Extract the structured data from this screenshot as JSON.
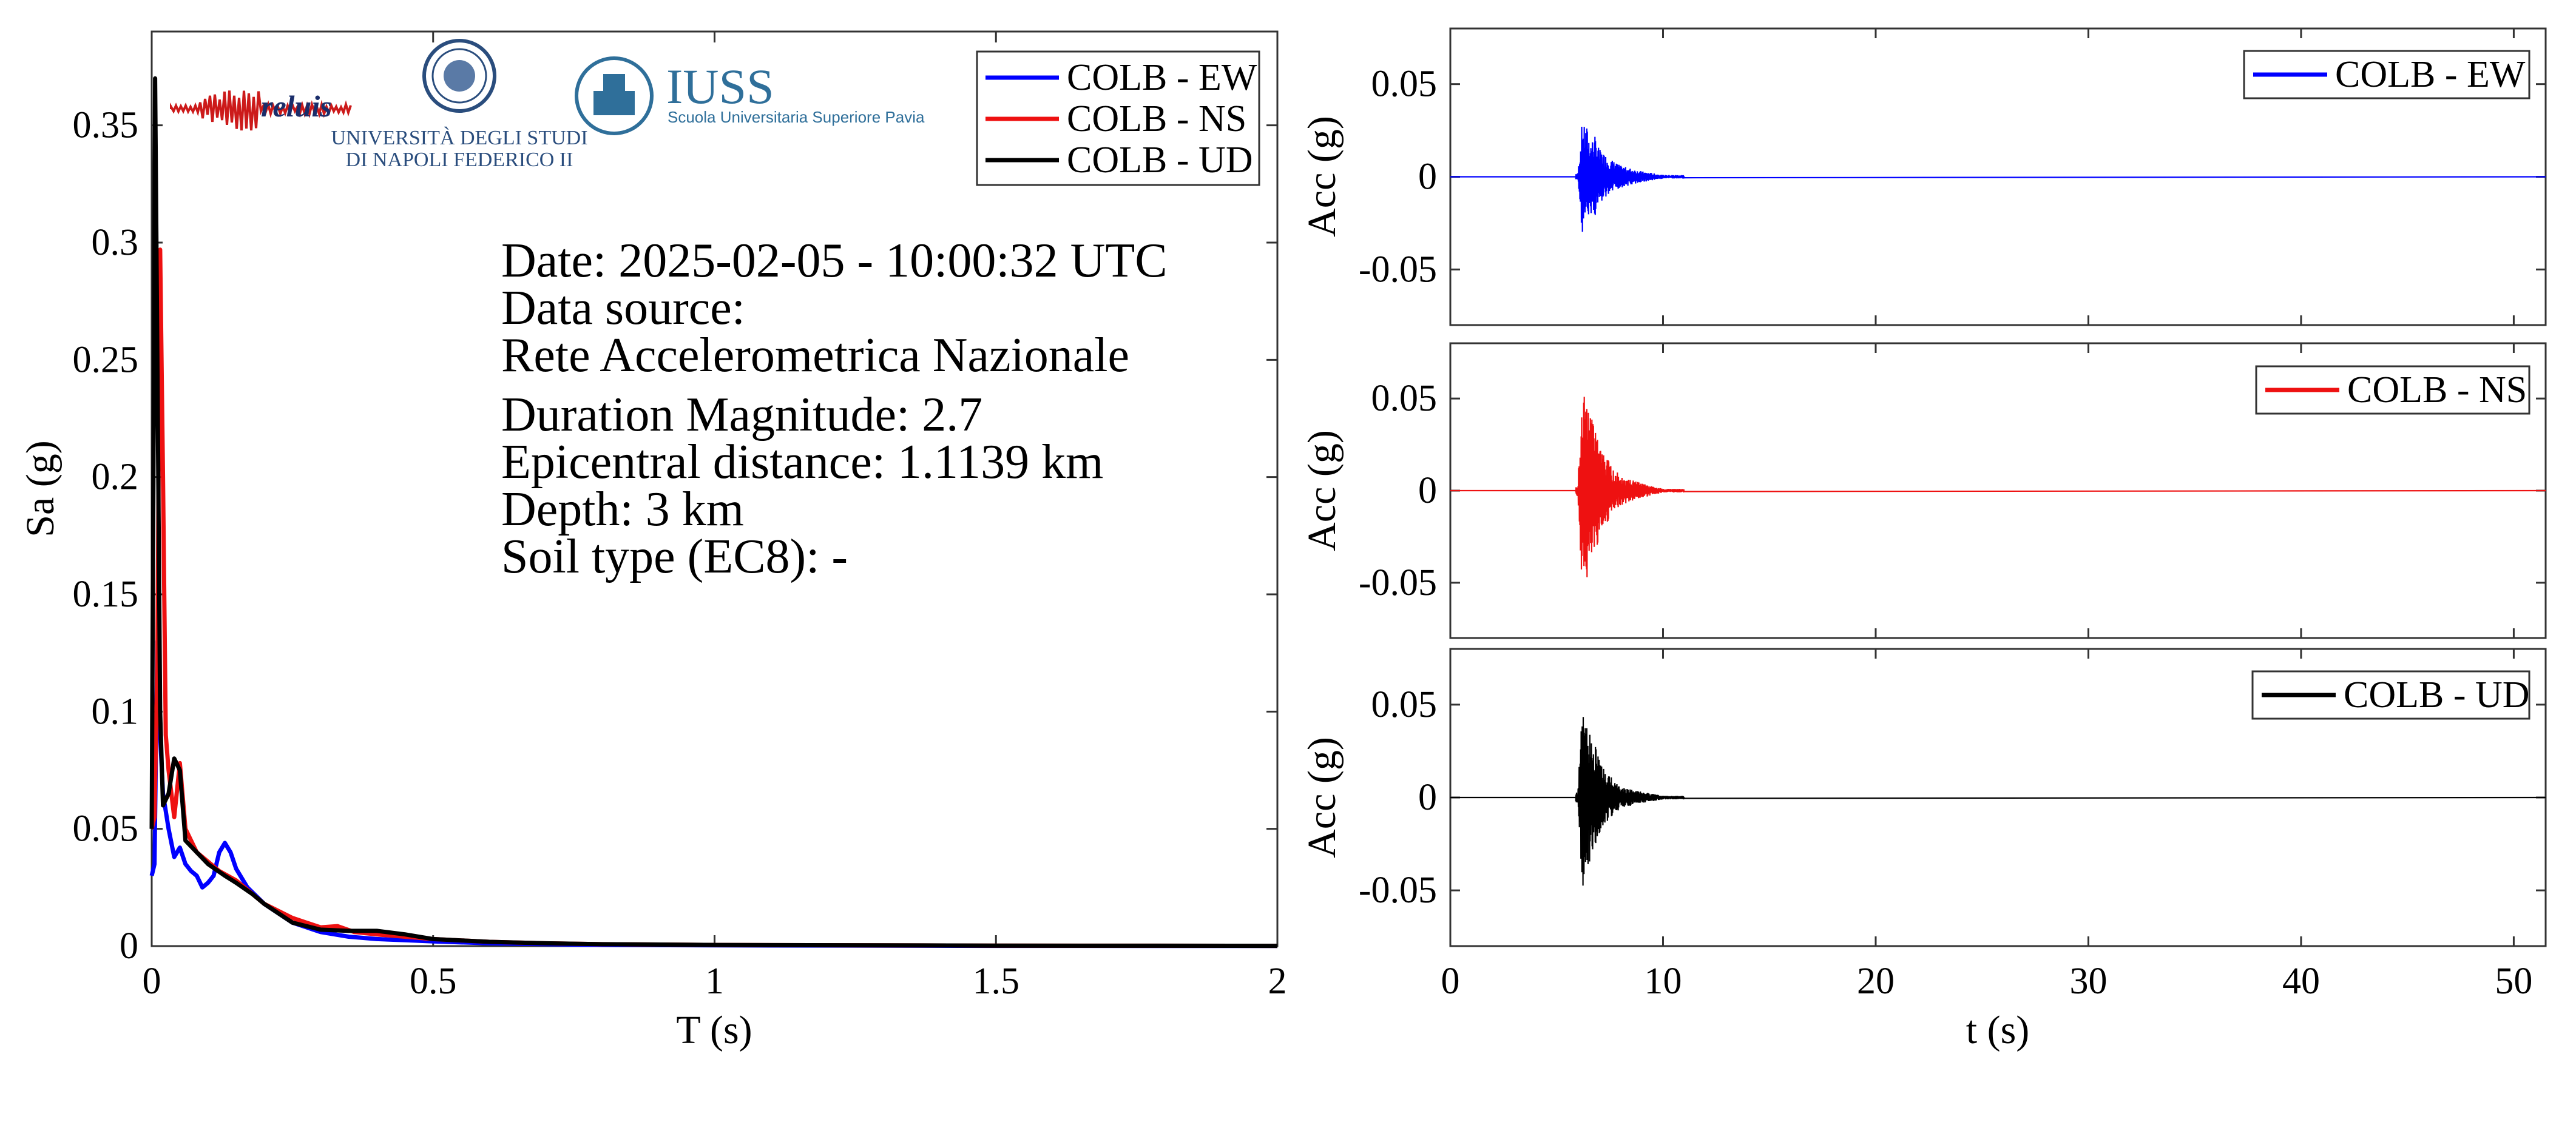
{
  "spectrum": {
    "ylabel": "Sa (g)",
    "xlabel": "T (s)",
    "legend": [
      "COLB - EW",
      "COLB - NS",
      "COLB - UD"
    ],
    "info_lines": [
      "Date: 2025-02-05 - 10:00:32 UTC",
      "Data source:",
      "Rete Accelerometrica Nazionale",
      "Duration Magnitude: 2.7",
      "Epicentral distance: 1.1139 km",
      "Depth: 3 km",
      "Soil type (EC8): -"
    ]
  },
  "logos": {
    "reluis_text": "reluis",
    "unina_line1": "UNIVERSITÀ DEGLI STUDI",
    "unina_line2": "DI NAPOLI FEDERICO II",
    "iuss_title": "IUSS",
    "iuss_sub": "Scuola Universitaria Superiore Pavia"
  },
  "acc": {
    "ylabel": "Acc (g)",
    "xlabel": "t (s)",
    "legend": [
      "COLB - EW",
      "COLB - NS",
      "COLB - UD"
    ]
  },
  "colors": {
    "EW": "#0000ff",
    "NS": "#ee1111",
    "UD": "#000000"
  },
  "chart_data": [
    {
      "type": "line",
      "title": "",
      "xlabel": "T (s)",
      "ylabel": "Sa (g)",
      "xlim": [
        0,
        2
      ],
      "ylim": [
        0,
        0.39
      ],
      "xticks": [
        "0",
        "0.5",
        "1",
        "1.5",
        "2"
      ],
      "yticks": [
        "0",
        "0.05",
        "0.1",
        "0.15",
        "0.2",
        "0.25",
        "0.3",
        "0.35"
      ],
      "legend_position": "top-right",
      "series": [
        {
          "name": "COLB - EW",
          "x": [
            0,
            0.005,
            0.01,
            0.015,
            0.02,
            0.03,
            0.04,
            0.05,
            0.06,
            0.07,
            0.08,
            0.09,
            0.1,
            0.11,
            0.12,
            0.13,
            0.14,
            0.15,
            0.17,
            0.2,
            0.25,
            0.3,
            0.35,
            0.4,
            0.45,
            0.5,
            0.6,
            0.7,
            0.8,
            1.0,
            1.5,
            2.0
          ],
          "y": [
            0.03,
            0.035,
            0.13,
            0.09,
            0.065,
            0.05,
            0.038,
            0.042,
            0.035,
            0.032,
            0.03,
            0.025,
            0.027,
            0.03,
            0.04,
            0.044,
            0.04,
            0.033,
            0.025,
            0.018,
            0.01,
            0.006,
            0.004,
            0.003,
            0.0025,
            0.002,
            0.0012,
            0.0008,
            0.0005,
            0.0003,
            0.0001,
            5e-05
          ]
        },
        {
          "name": "COLB - NS",
          "x": [
            0,
            0.005,
            0.01,
            0.015,
            0.02,
            0.025,
            0.03,
            0.04,
            0.05,
            0.06,
            0.07,
            0.08,
            0.1,
            0.12,
            0.15,
            0.17,
            0.2,
            0.25,
            0.3,
            0.33,
            0.36,
            0.4,
            0.45,
            0.5,
            0.6,
            0.7,
            0.8,
            1.0,
            1.5,
            2.0
          ],
          "y": [
            0.05,
            0.055,
            0.12,
            0.297,
            0.2,
            0.09,
            0.075,
            0.055,
            0.078,
            0.05,
            0.045,
            0.04,
            0.036,
            0.032,
            0.028,
            0.024,
            0.018,
            0.012,
            0.008,
            0.0085,
            0.006,
            0.005,
            0.004,
            0.003,
            0.0018,
            0.0012,
            0.0008,
            0.0005,
            0.0002,
            0.0001
          ]
        },
        {
          "name": "COLB - UD",
          "x": [
            0,
            0.003,
            0.006,
            0.01,
            0.015,
            0.02,
            0.03,
            0.04,
            0.05,
            0.06,
            0.08,
            0.1,
            0.13,
            0.15,
            0.18,
            0.2,
            0.25,
            0.3,
            0.35,
            0.4,
            0.45,
            0.5,
            0.6,
            0.7,
            0.8,
            1.0,
            1.5,
            2.0
          ],
          "y": [
            0.05,
            0.2,
            0.37,
            0.25,
            0.1,
            0.06,
            0.065,
            0.08,
            0.075,
            0.045,
            0.04,
            0.035,
            0.03,
            0.027,
            0.022,
            0.018,
            0.01,
            0.007,
            0.0065,
            0.0065,
            0.005,
            0.003,
            0.0018,
            0.0012,
            0.0008,
            0.0005,
            0.0002,
            0.0001
          ]
        }
      ]
    },
    {
      "type": "line",
      "title": "",
      "xlabel": "",
      "ylabel": "Acc (g)",
      "xlim": [
        0,
        51.5
      ],
      "ylim": [
        -0.08,
        0.08
      ],
      "yticks": [
        "-0.05",
        "0",
        "0.05"
      ],
      "legend_position": "top-right",
      "series": [
        {
          "name": "COLB - EW",
          "x": [
            0,
            6.0,
            6.2,
            6.3,
            6.4,
            6.6,
            6.8,
            7.0,
            7.5,
            8.0,
            9.0,
            10.0,
            51.5
          ],
          "y": [
            0,
            0.002,
            0.031,
            -0.027,
            0.028,
            -0.02,
            0.022,
            -0.015,
            0.01,
            -0.006,
            0.003,
            0.001,
            0
          ]
        }
      ]
    },
    {
      "type": "line",
      "title": "",
      "xlabel": "",
      "ylabel": "Acc (g)",
      "xlim": [
        0,
        51.5
      ],
      "ylim": [
        -0.08,
        0.08
      ],
      "yticks": [
        "-0.05",
        "0",
        "0.05"
      ],
      "legend_position": "top-right",
      "series": [
        {
          "name": "COLB - NS",
          "x": [
            0,
            6.0,
            6.2,
            6.3,
            6.4,
            6.6,
            6.8,
            7.0,
            7.5,
            8.0,
            9.0,
            10.0,
            51.5
          ],
          "y": [
            0,
            0.003,
            0.061,
            -0.056,
            0.05,
            -0.04,
            0.035,
            -0.025,
            0.015,
            -0.008,
            0.004,
            0.001,
            0
          ]
        }
      ]
    },
    {
      "type": "line",
      "title": "",
      "xlabel": "t (s)",
      "ylabel": "Acc (g)",
      "xlim": [
        0,
        51.5
      ],
      "ylim": [
        -0.08,
        0.08
      ],
      "xticks": [
        "0",
        "10",
        "20",
        "30",
        "40",
        "50"
      ],
      "yticks": [
        "-0.05",
        "0",
        "0.05"
      ],
      "legend_position": "top-right",
      "series": [
        {
          "name": "COLB - UD",
          "x": [
            0,
            6.0,
            6.2,
            6.3,
            6.4,
            6.6,
            6.8,
            7.0,
            7.5,
            8.0,
            9.0,
            10.0,
            51.5
          ],
          "y": [
            0,
            0.003,
            0.053,
            -0.04,
            0.045,
            -0.032,
            0.03,
            -0.02,
            0.012,
            -0.006,
            0.003,
            0.001,
            0
          ]
        }
      ]
    }
  ]
}
